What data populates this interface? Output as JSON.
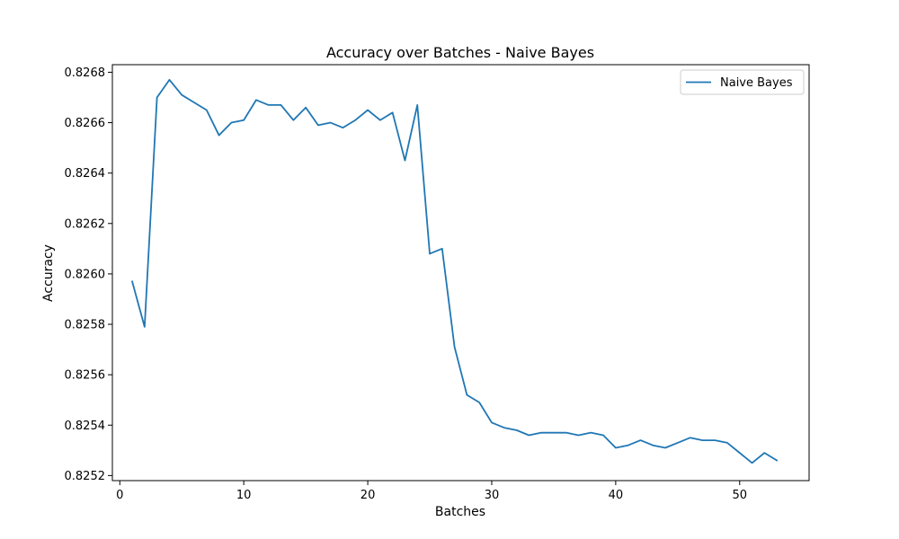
{
  "chart_data": {
    "type": "line",
    "title": "Accuracy over Batches - Naive Bayes",
    "xlabel": "Batches",
    "ylabel": "Accuracy",
    "xlim": [
      -0.6,
      55.6
    ],
    "ylim": [
      0.82518,
      0.82683
    ],
    "xticks": [
      0,
      10,
      20,
      30,
      40,
      50
    ],
    "yticks": [
      0.8252,
      0.8254,
      0.8256,
      0.8258,
      0.826,
      0.8262,
      0.8264,
      0.8266,
      0.8268
    ],
    "ytick_decimals": 4,
    "grid": false,
    "legend": {
      "placement": "top-right"
    },
    "series": [
      {
        "name": "Naive Bayes",
        "color": "#1f77b4",
        "x": [
          1,
          2,
          3,
          4,
          5,
          6,
          7,
          8,
          9,
          10,
          11,
          12,
          13,
          14,
          15,
          16,
          17,
          18,
          19,
          20,
          21,
          22,
          23,
          24,
          25,
          26,
          27,
          28,
          29,
          30,
          31,
          32,
          33,
          34,
          35,
          36,
          37,
          38,
          39,
          40,
          41,
          42,
          43,
          44,
          45,
          46,
          47,
          48,
          49,
          50,
          51,
          52,
          53
        ],
        "y": [
          0.82597,
          0.82579,
          0.8267,
          0.82677,
          0.82671,
          0.82668,
          0.82665,
          0.82655,
          0.8266,
          0.82661,
          0.82669,
          0.82667,
          0.82667,
          0.82661,
          0.82666,
          0.82659,
          0.8266,
          0.82658,
          0.82661,
          0.82665,
          0.82661,
          0.82664,
          0.82645,
          0.82667,
          0.82608,
          0.8261,
          0.82571,
          0.82552,
          0.82549,
          0.82541,
          0.82539,
          0.82538,
          0.82536,
          0.82537,
          0.82537,
          0.82537,
          0.82536,
          0.82537,
          0.82536,
          0.82531,
          0.82532,
          0.82534,
          0.82532,
          0.82531,
          0.82533,
          0.82535,
          0.82534,
          0.82534,
          0.82533,
          0.82529,
          0.82525,
          0.82529,
          0.82526
        ]
      }
    ]
  }
}
